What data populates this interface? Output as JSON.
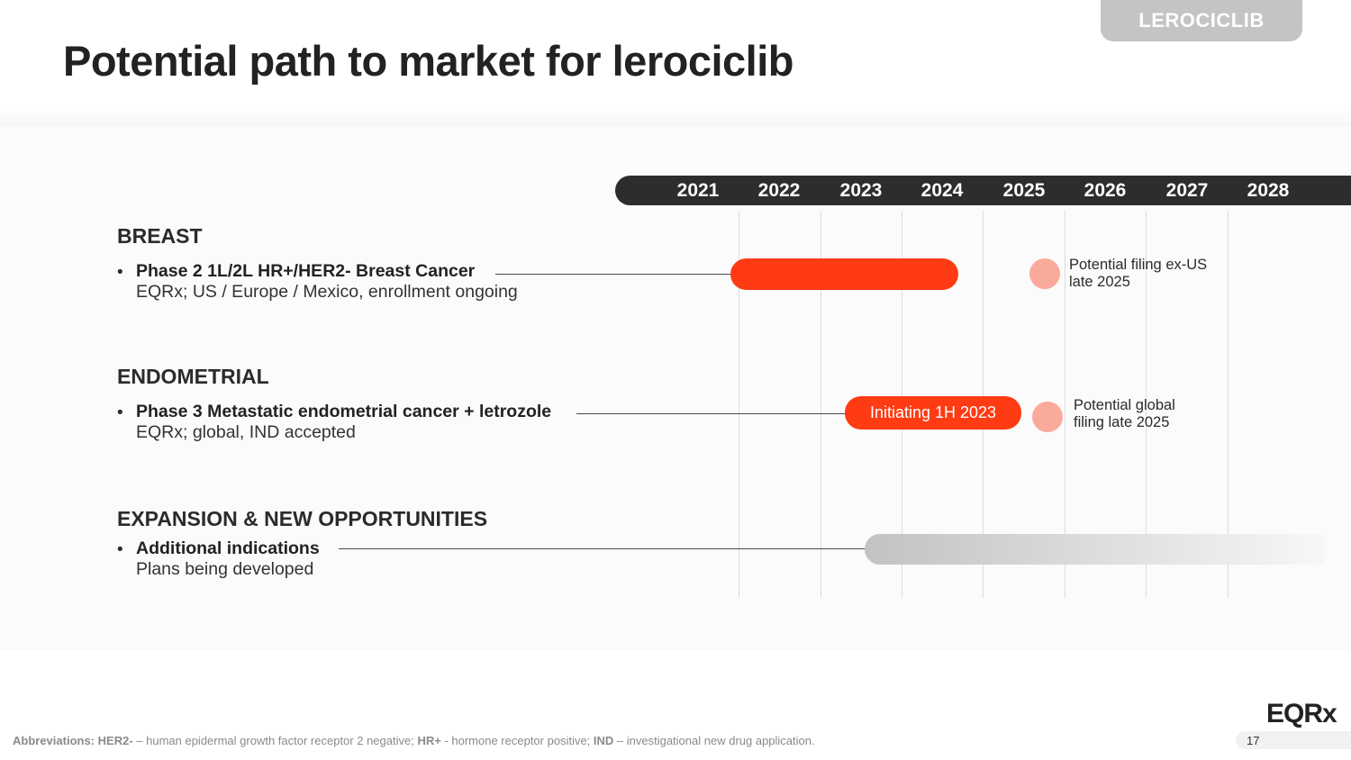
{
  "header": {
    "tag": "LEROCICLIB",
    "title": "Potential path to market for lerociclib"
  },
  "timeline": {
    "years": [
      "2021",
      "2022",
      "2023",
      "2024",
      "2025",
      "2026",
      "2027",
      "2028"
    ]
  },
  "sections": {
    "breast": {
      "title": "BREAST",
      "bullet": "•",
      "item_title": "Phase 2 1L/2L HR+/HER2- Breast Cancer",
      "item_sub": "EQRx; US / Europe / Mexico, enrollment ongoing",
      "note_line1": "Potential filing ex-US",
      "note_line2": "late 2025"
    },
    "endometrial": {
      "title": "ENDOMETRIAL",
      "bullet": "•",
      "item_title": "Phase 3 Metastatic endometrial cancer + letrozole",
      "item_sub": "EQRx; global, IND accepted",
      "bar_label": "Initiating 1H 2023",
      "note_line1": "Potential global",
      "note_line2": "filing late 2025"
    },
    "expansion": {
      "title": "EXPANSION & NEW OPPORTUNITIES",
      "bullet": "•",
      "item_title": "Additional indications",
      "item_sub": "Plans being developed"
    }
  },
  "footer": {
    "abbr_label": "Abbreviations:",
    "her2_term": "HER2-",
    "her2_def": " – human epidermal growth factor receptor 2 negative; ",
    "hr_term": "HR+",
    "hr_def": " - hormone receptor positive; ",
    "ind_term": "IND",
    "ind_def": " – investigational new drug application.",
    "logo": "EQRx",
    "page_number": "17"
  },
  "colors": {
    "accent_red": "#ff3b14",
    "milestone_pink": "#f9aa9a",
    "timeline_dark": "#2d2d2d"
  }
}
